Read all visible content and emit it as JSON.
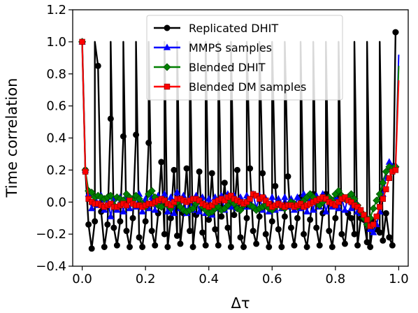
{
  "chart_data": {
    "type": "line",
    "xlabel": "Δτ",
    "ylabel": "Time correlation",
    "xlim": [
      -0.03,
      1.03
    ],
    "ylim": [
      -0.4,
      1.2
    ],
    "xticks": [
      0.0,
      0.2,
      0.4,
      0.6,
      0.8,
      1.0
    ],
    "xtick_labels": [
      "0.0",
      "0.2",
      "0.4",
      "0.6",
      "0.8",
      "1.0"
    ],
    "yticks": [
      -0.4,
      -0.2,
      0.0,
      0.2,
      0.4,
      0.6,
      0.8,
      1.0,
      1.2
    ],
    "ytick_labels": [
      "−0.4",
      "−0.2",
      "0.0",
      "0.2",
      "0.4",
      "0.6",
      "0.8",
      "1.0",
      "1.2"
    ],
    "grid": false,
    "legend_position": "top-right",
    "series": [
      {
        "name": "Replicated DHIT",
        "color": "#000000",
        "marker": "circle",
        "x": [
          0.0,
          0.01,
          0.02,
          0.03,
          0.04,
          0.05,
          0.06,
          0.07,
          0.08,
          0.09,
          0.1,
          0.11,
          0.12,
          0.13,
          0.14,
          0.15,
          0.16,
          0.17,
          0.18,
          0.19,
          0.2,
          0.21,
          0.22,
          0.23,
          0.24,
          0.25,
          0.26,
          0.27,
          0.28,
          0.29,
          0.3,
          0.31,
          0.32,
          0.33,
          0.34,
          0.35,
          0.36,
          0.37,
          0.38,
          0.39,
          0.4,
          0.41,
          0.42,
          0.43,
          0.44,
          0.45,
          0.46,
          0.47,
          0.48,
          0.49,
          0.5,
          0.51,
          0.52,
          0.53,
          0.54,
          0.55,
          0.56,
          0.57,
          0.58,
          0.59,
          0.6,
          0.61,
          0.62,
          0.63,
          0.64,
          0.65,
          0.66,
          0.67,
          0.68,
          0.69,
          0.7,
          0.71,
          0.72,
          0.73,
          0.74,
          0.75,
          0.76,
          0.77,
          0.78,
          0.79,
          0.8,
          0.81,
          0.82,
          0.83,
          0.84,
          0.85,
          0.86,
          0.87,
          0.88,
          0.89,
          0.9,
          0.91,
          0.92,
          0.93,
          0.94,
          0.95,
          0.96,
          0.97,
          0.98,
          0.99
        ],
        "y": [
          1.0,
          0.2,
          -0.14,
          -0.29,
          -0.12,
          0.85,
          -0.06,
          -0.28,
          -0.14,
          0.52,
          -0.16,
          -0.27,
          -0.12,
          0.41,
          -0.18,
          -0.28,
          -0.1,
          0.42,
          -0.22,
          -0.28,
          -0.12,
          0.37,
          -0.18,
          -0.27,
          -0.07,
          0.25,
          -0.2,
          -0.28,
          -0.1,
          0.2,
          -0.21,
          -0.26,
          -0.07,
          0.21,
          -0.18,
          -0.28,
          -0.08,
          0.19,
          -0.19,
          -0.27,
          -0.11,
          0.18,
          -0.17,
          -0.27,
          -0.09,
          0.12,
          -0.16,
          -0.28,
          -0.08,
          0.2,
          -0.22,
          -0.28,
          -0.1,
          0.21,
          -0.18,
          -0.26,
          -0.09,
          0.18,
          -0.2,
          -0.28,
          -0.12,
          0.1,
          -0.17,
          -0.28,
          -0.09,
          0.16,
          -0.16,
          -0.27,
          -0.1,
          0.03,
          -0.2,
          -0.28,
          -0.11,
          0.05,
          -0.16,
          -0.27,
          -0.07,
          0.05,
          -0.18,
          -0.28,
          -0.1,
          0.06,
          -0.2,
          -0.26,
          -0.07,
          -0.1,
          -0.2,
          -0.27,
          -0.1,
          -0.11,
          -0.25,
          -0.28,
          -0.12,
          -0.17,
          -0.19,
          -0.24,
          -0.07,
          -0.22,
          -0.27,
          1.06
        ],
        "peak_x": [
          0.04,
          0.09,
          0.13,
          0.17,
          0.21,
          0.26,
          0.3,
          0.34,
          0.39,
          0.43,
          0.47,
          0.52,
          0.56,
          0.6,
          0.64,
          0.69,
          0.73,
          0.77,
          0.81,
          0.86,
          0.9,
          0.94
        ]
      },
      {
        "name": "MMPS samples",
        "color": "#0000ff",
        "marker": "triangle",
        "x": [
          0.0,
          0.01,
          0.02,
          0.03,
          0.04,
          0.05,
          0.06,
          0.07,
          0.08,
          0.09,
          0.1,
          0.11,
          0.12,
          0.13,
          0.14,
          0.15,
          0.16,
          0.17,
          0.18,
          0.19,
          0.2,
          0.21,
          0.22,
          0.23,
          0.24,
          0.25,
          0.26,
          0.27,
          0.28,
          0.29,
          0.3,
          0.31,
          0.32,
          0.33,
          0.34,
          0.35,
          0.36,
          0.37,
          0.38,
          0.39,
          0.4,
          0.41,
          0.42,
          0.43,
          0.44,
          0.45,
          0.46,
          0.47,
          0.48,
          0.49,
          0.5,
          0.51,
          0.52,
          0.53,
          0.54,
          0.55,
          0.56,
          0.57,
          0.58,
          0.59,
          0.6,
          0.61,
          0.62,
          0.63,
          0.64,
          0.65,
          0.66,
          0.67,
          0.68,
          0.69,
          0.7,
          0.71,
          0.72,
          0.73,
          0.74,
          0.75,
          0.76,
          0.77,
          0.78,
          0.79,
          0.8,
          0.81,
          0.82,
          0.83,
          0.84,
          0.85,
          0.86,
          0.87,
          0.88,
          0.89,
          0.9,
          0.91,
          0.92,
          0.93,
          0.94,
          0.95,
          0.96,
          0.97,
          0.98,
          0.99,
          1.0
        ],
        "y": [
          1.0,
          0.2,
          0.05,
          -0.04,
          0.02,
          -0.02,
          0.04,
          -0.05,
          0.03,
          -0.09,
          0.02,
          -0.05,
          0.03,
          -0.06,
          0.04,
          -0.04,
          0.02,
          -0.03,
          0.05,
          -0.06,
          0.02,
          -0.04,
          0.03,
          -0.05,
          0.04,
          -0.02,
          0.05,
          -0.06,
          0.03,
          -0.07,
          0.06,
          -0.04,
          0.04,
          -0.07,
          0.02,
          -0.05,
          0.04,
          -0.06,
          0.03,
          -0.07,
          0.02,
          -0.08,
          0.03,
          -0.04,
          0.04,
          -0.05,
          0.05,
          -0.03,
          0.04,
          -0.04,
          0.03,
          -0.03,
          0.04,
          -0.03,
          0.05,
          -0.04,
          0.04,
          -0.05,
          0.02,
          -0.06,
          0.03,
          -0.05,
          0.02,
          -0.04,
          0.03,
          -0.03,
          0.02,
          -0.05,
          0.03,
          -0.04,
          0.05,
          -0.06,
          0.02,
          -0.05,
          0.04,
          -0.03,
          0.05,
          -0.06,
          0.02,
          -0.03,
          0.03,
          -0.04,
          0.02,
          -0.05,
          0.03,
          -0.04,
          0.01,
          -0.06,
          -0.07,
          -0.09,
          -0.12,
          -0.17,
          -0.19,
          -0.14,
          -0.06,
          0.05,
          0.16,
          0.25,
          0.22,
          0.23,
          0.92
        ]
      },
      {
        "name": "Blended DHIT",
        "color": "#008000",
        "marker": "diamond",
        "x": [
          0.0,
          0.01,
          0.02,
          0.03,
          0.04,
          0.05,
          0.06,
          0.07,
          0.08,
          0.09,
          0.1,
          0.11,
          0.12,
          0.13,
          0.14,
          0.15,
          0.16,
          0.17,
          0.18,
          0.19,
          0.2,
          0.21,
          0.22,
          0.23,
          0.24,
          0.25,
          0.26,
          0.27,
          0.28,
          0.29,
          0.3,
          0.31,
          0.32,
          0.33,
          0.34,
          0.35,
          0.36,
          0.37,
          0.38,
          0.39,
          0.4,
          0.41,
          0.42,
          0.43,
          0.44,
          0.45,
          0.46,
          0.47,
          0.48,
          0.49,
          0.5,
          0.51,
          0.52,
          0.53,
          0.54,
          0.55,
          0.56,
          0.57,
          0.58,
          0.59,
          0.6,
          0.61,
          0.62,
          0.63,
          0.64,
          0.65,
          0.66,
          0.67,
          0.68,
          0.69,
          0.7,
          0.71,
          0.72,
          0.73,
          0.74,
          0.75,
          0.76,
          0.77,
          0.78,
          0.79,
          0.8,
          0.81,
          0.82,
          0.83,
          0.84,
          0.85,
          0.86,
          0.87,
          0.88,
          0.89,
          0.9,
          0.91,
          0.92,
          0.93,
          0.94,
          0.95,
          0.96,
          0.97,
          0.98,
          0.99,
          1.0
        ],
        "y": [
          1.0,
          0.2,
          0.07,
          0.06,
          0.03,
          0.04,
          0.03,
          0.02,
          0.03,
          0.04,
          -0.02,
          0.03,
          0.02,
          0.01,
          0.05,
          0.03,
          0.01,
          0.04,
          0.02,
          -0.01,
          -0.03,
          0.05,
          0.07,
          0.03,
          -0.02,
          -0.03,
          0.01,
          -0.02,
          -0.04,
          -0.01,
          0.0,
          -0.03,
          -0.05,
          -0.06,
          -0.05,
          -0.04,
          -0.01,
          0.01,
          -0.03,
          -0.05,
          -0.07,
          -0.06,
          -0.04,
          -0.03,
          -0.05,
          -0.04,
          -0.02,
          0.01,
          -0.01,
          -0.04,
          -0.05,
          -0.02,
          0.0,
          -0.02,
          -0.03,
          -0.05,
          -0.04,
          -0.03,
          -0.02,
          -0.04,
          -0.05,
          -0.03,
          -0.01,
          -0.03,
          -0.04,
          -0.02,
          0.0,
          -0.01,
          -0.03,
          -0.02,
          0.01,
          0.03,
          0.05,
          0.03,
          0.01,
          -0.02,
          0.0,
          0.02,
          0.03,
          0.01,
          0.05,
          0.07,
          0.04,
          0.02,
          0.03,
          0.05,
          0.02,
          -0.02,
          -0.06,
          -0.1,
          -0.14,
          -0.1,
          -0.04,
          0.01,
          0.05,
          0.12,
          0.19,
          0.22,
          0.21,
          0.22,
          0.85
        ]
      },
      {
        "name": "Blended DM samples",
        "color": "#ff0000",
        "marker": "square",
        "x": [
          0.0,
          0.01,
          0.02,
          0.03,
          0.04,
          0.05,
          0.06,
          0.07,
          0.08,
          0.09,
          0.1,
          0.11,
          0.12,
          0.13,
          0.14,
          0.15,
          0.16,
          0.17,
          0.18,
          0.19,
          0.2,
          0.21,
          0.22,
          0.23,
          0.24,
          0.25,
          0.26,
          0.27,
          0.28,
          0.29,
          0.3,
          0.31,
          0.32,
          0.33,
          0.34,
          0.35,
          0.36,
          0.37,
          0.38,
          0.39,
          0.4,
          0.41,
          0.42,
          0.43,
          0.44,
          0.45,
          0.46,
          0.47,
          0.48,
          0.49,
          0.5,
          0.51,
          0.52,
          0.53,
          0.54,
          0.55,
          0.56,
          0.57,
          0.58,
          0.59,
          0.6,
          0.61,
          0.62,
          0.63,
          0.64,
          0.65,
          0.66,
          0.67,
          0.68,
          0.69,
          0.7,
          0.71,
          0.72,
          0.73,
          0.74,
          0.75,
          0.76,
          0.77,
          0.78,
          0.79,
          0.8,
          0.81,
          0.82,
          0.83,
          0.84,
          0.85,
          0.86,
          0.87,
          0.88,
          0.89,
          0.9,
          0.91,
          0.92,
          0.93,
          0.94,
          0.95,
          0.96,
          0.97,
          0.98,
          0.99,
          1.0
        ],
        "y": [
          1.0,
          0.19,
          0.02,
          0.0,
          -0.01,
          -0.01,
          -0.02,
          -0.03,
          -0.02,
          -0.01,
          -0.03,
          -0.03,
          -0.02,
          -0.01,
          -0.02,
          0.01,
          -0.01,
          -0.02,
          -0.02,
          -0.03,
          -0.02,
          -0.01,
          -0.01,
          0.0,
          0.01,
          0.02,
          0.01,
          -0.01,
          -0.02,
          0.0,
          0.02,
          0.02,
          0.01,
          0.0,
          0.01,
          0.02,
          0.02,
          0.01,
          -0.01,
          -0.02,
          -0.03,
          -0.02,
          0.0,
          0.01,
          0.02,
          0.01,
          0.03,
          0.04,
          0.02,
          0.01,
          0.0,
          -0.01,
          0.0,
          0.02,
          0.05,
          0.04,
          0.02,
          0.03,
          0.01,
          -0.01,
          -0.03,
          -0.02,
          -0.01,
          -0.02,
          -0.03,
          -0.02,
          -0.02,
          -0.03,
          -0.02,
          -0.01,
          -0.03,
          -0.02,
          -0.01,
          0.0,
          0.01,
          0.02,
          0.03,
          0.02,
          0.0,
          -0.01,
          -0.02,
          0.0,
          0.02,
          0.03,
          0.01,
          0.0,
          -0.02,
          -0.03,
          -0.05,
          -0.08,
          -0.11,
          -0.15,
          -0.14,
          -0.09,
          -0.03,
          0.02,
          0.08,
          0.15,
          0.19,
          0.2,
          0.76
        ]
      }
    ]
  }
}
